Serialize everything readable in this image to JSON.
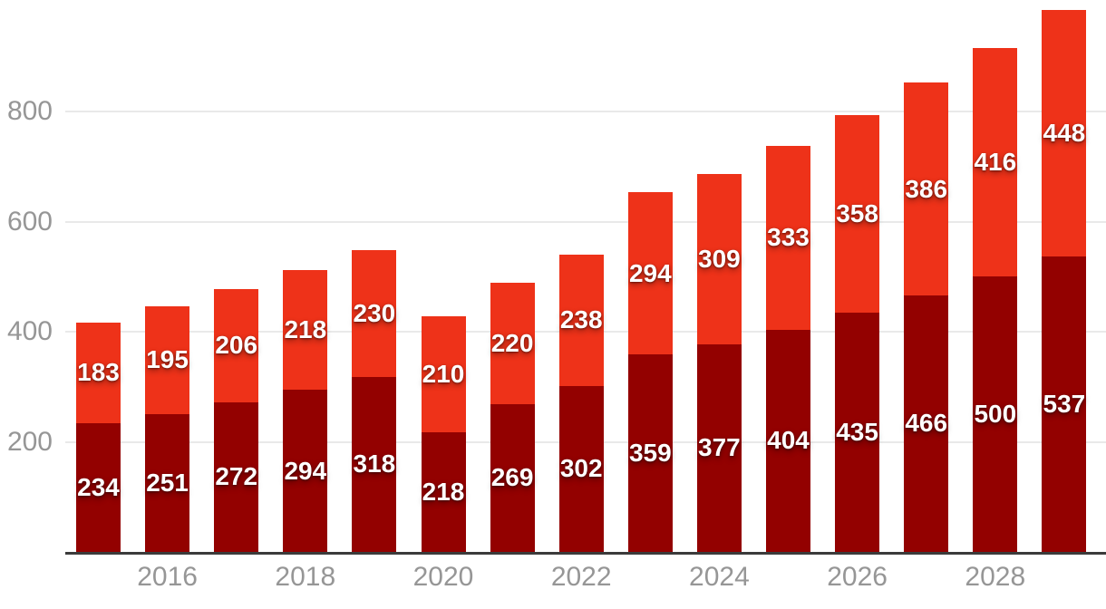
{
  "chart_data": {
    "type": "bar",
    "stacked": true,
    "title": "",
    "xlabel": "",
    "ylabel": "",
    "x": [
      2015,
      2016,
      2017,
      2018,
      2019,
      2020,
      2021,
      2022,
      2023,
      2024,
      2025,
      2026,
      2027,
      2028,
      2029
    ],
    "x_tick_labels": [
      "2016",
      "2018",
      "2020",
      "2022",
      "2024",
      "2026",
      "2028"
    ],
    "y_ticks": [
      200,
      400,
      600,
      800
    ],
    "ylim": [
      0,
      1000
    ],
    "grid": true,
    "legend": false,
    "series": [
      {
        "name": "bottom-dark-red-segment",
        "color": "#930100",
        "values": [
          234,
          251,
          272,
          294,
          318,
          218,
          269,
          302,
          359,
          377,
          404,
          435,
          466,
          500,
          537
        ]
      },
      {
        "name": "top-bright-red-segment",
        "color": "#ee3219",
        "values": [
          183,
          195,
          206,
          218,
          230,
          210,
          220,
          238,
          294,
          309,
          333,
          358,
          386,
          416,
          448
        ]
      }
    ],
    "totals": [
      417,
      446,
      478,
      512,
      548,
      428,
      489,
      540,
      653,
      686,
      737,
      793,
      852,
      916,
      985
    ]
  },
  "style": {
    "background_color": "#ffffff",
    "gridline_color": "#e9e9e9",
    "axis_line_color": "#3b3b3b",
    "tick_text_color": "#969696",
    "value_text_color": "#ffffff"
  }
}
